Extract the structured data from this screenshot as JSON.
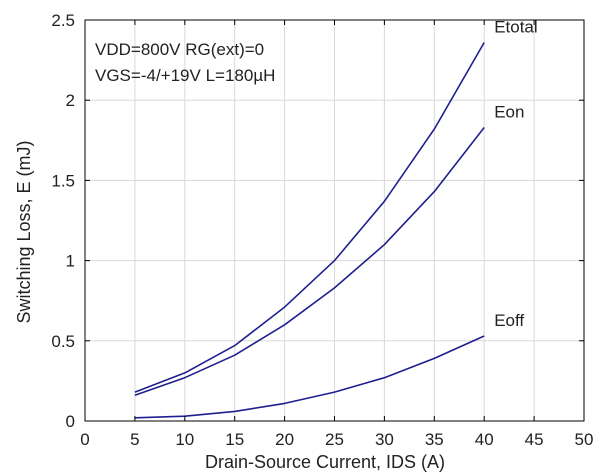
{
  "chart_data": {
    "type": "line",
    "xlabel": "Drain-Source Current, IDS (A)",
    "ylabel": "Switching Loss, E (mJ)",
    "xlim": [
      0,
      50
    ],
    "ylim": [
      0,
      2.5
    ],
    "xticks": [
      0,
      5,
      10,
      15,
      20,
      25,
      30,
      35,
      40,
      45,
      50
    ],
    "yticks": [
      0,
      0.5,
      1,
      1.5,
      2,
      2.5
    ],
    "xtick_labels": [
      "0",
      "5",
      "10",
      "15",
      "20",
      "25",
      "30",
      "35",
      "40",
      "45",
      "50"
    ],
    "ytick_labels": [
      "0",
      "0.5",
      "1",
      "1.5",
      "2",
      "2.5"
    ],
    "grid": true,
    "annotations": [
      "VDD=800V RG(ext)=0",
      "VGS=-4/+19V L=180µH"
    ],
    "line_color": "#1f1f8f",
    "x": [
      5,
      10,
      15,
      20,
      25,
      30,
      35,
      40
    ],
    "series": [
      {
        "name": "Etotal",
        "values": [
          0.18,
          0.3,
          0.47,
          0.71,
          1.0,
          1.37,
          1.82,
          2.36
        ]
      },
      {
        "name": "Eon",
        "values": [
          0.16,
          0.27,
          0.41,
          0.6,
          0.83,
          1.1,
          1.43,
          1.83
        ]
      },
      {
        "name": "Eoff",
        "values": [
          0.02,
          0.03,
          0.06,
          0.11,
          0.18,
          0.27,
          0.39,
          0.53
        ]
      }
    ]
  }
}
